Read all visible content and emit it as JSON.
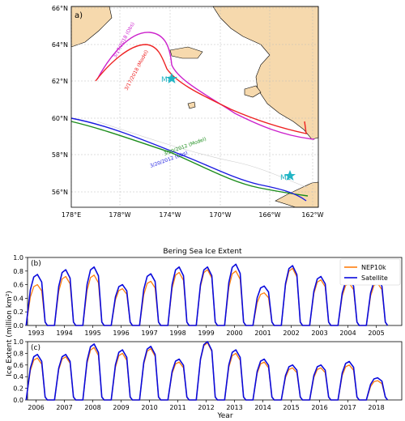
{
  "colors": {
    "land": "#f6d9ad",
    "ocean": "#ffffff",
    "model": "#ff7f0e",
    "satellite": "#0a0adc",
    "obs2018": "#cc22cc",
    "model2018": "#ee2222",
    "model2012": "#1a8c1a",
    "obs2012": "#1a1ae0",
    "station": "#22b5c5"
  },
  "map": {
    "panel_label": "a)",
    "lat_ticks": [
      "66°N",
      "64°N",
      "62°N",
      "60°N",
      "58°N",
      "56°N"
    ],
    "lon_ticks": [
      "178°E",
      "178°W",
      "174°W",
      "170°W",
      "166°W",
      "162°W"
    ],
    "stations": [
      {
        "name": "M8",
        "label": "M8",
        "icon": "star-icon"
      },
      {
        "name": "M2",
        "label": "M2",
        "icon": "star-icon"
      }
    ],
    "lines": [
      {
        "label": "3/17/2018 (Obs)"
      },
      {
        "label": "3/17/2018 (Model)"
      },
      {
        "label": "3/20/2012 (Model)"
      },
      {
        "label": "3/20/2012 (Obs)"
      }
    ]
  },
  "chart_data": [
    {
      "type": "line",
      "panel": "(b)",
      "title": "Bering Sea Ice Extent",
      "ylabel": "Ice Extent (million km²)",
      "xlabel": "",
      "ylim": [
        0,
        1.0
      ],
      "yticks": [
        "0.0",
        "0.2",
        "0.4",
        "0.6",
        "0.8",
        "1.0"
      ],
      "years": [
        "1993",
        "1994",
        "1995",
        "1996",
        "1997",
        "1998",
        "1999",
        "2000",
        "2001",
        "2002",
        "2003",
        "2004",
        "2005"
      ],
      "xlim": [
        1992.7,
        2005.9
      ],
      "legend": {
        "position": "top-right"
      },
      "series": [
        {
          "name": "NEP10k",
          "peaks": [
            0.6,
            0.72,
            0.74,
            0.54,
            0.65,
            0.78,
            0.82,
            0.8,
            0.48,
            0.84,
            0.67,
            0.62,
            0.62
          ]
        },
        {
          "name": "Satellite",
          "peaks": [
            0.75,
            0.82,
            0.86,
            0.6,
            0.76,
            0.86,
            0.86,
            0.9,
            0.58,
            0.88,
            0.72,
            0.68,
            0.68
          ]
        }
      ]
    },
    {
      "type": "line",
      "panel": "(c)",
      "title": "",
      "ylabel": "Ice Extent (million km²)",
      "xlabel": "Year",
      "ylim": [
        0,
        1.0
      ],
      "yticks": [
        "0.0",
        "0.2",
        "0.4",
        "0.6",
        "0.8",
        "1.0"
      ],
      "years": [
        "2006",
        "2007",
        "2008",
        "2009",
        "2010",
        "2011",
        "2012",
        "2013",
        "2014",
        "2015",
        "2016",
        "2017",
        "2018"
      ],
      "xlim": [
        2005.7,
        2018.9
      ],
      "series": [
        {
          "name": "NEP10k",
          "peaks": [
            0.72,
            0.74,
            0.9,
            0.8,
            0.88,
            0.65,
            0.98,
            0.8,
            0.65,
            0.55,
            0.55,
            0.6,
            0.33
          ]
        },
        {
          "name": "Satellite",
          "peaks": [
            0.78,
            0.78,
            0.96,
            0.86,
            0.92,
            0.7,
            1.0,
            0.86,
            0.7,
            0.6,
            0.6,
            0.66,
            0.38
          ]
        }
      ]
    }
  ]
}
